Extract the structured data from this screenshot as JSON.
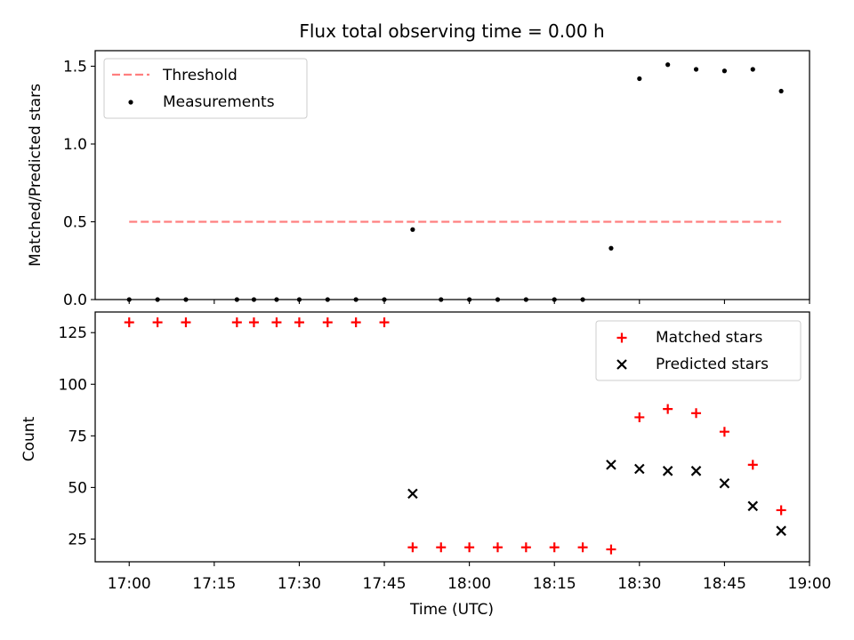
{
  "chart_data": [
    {
      "type": "scatter",
      "title": "Flux total observing time = 0.00 h",
      "xlabel": "",
      "ylabel": "Matched/Predicted stars",
      "ylim": [
        0,
        1.6
      ],
      "yticks": [
        "0.0",
        "0.5",
        "1.0",
        "1.5"
      ],
      "yticks_values": [
        0,
        0.5,
        1.0,
        1.5
      ],
      "legend_position": "top-left",
      "threshold": {
        "name": "Threshold",
        "value": 0.5,
        "x_start": "17:00",
        "x_end": "18:55",
        "color": "#ff7f7f",
        "style": "dashed"
      },
      "series": [
        {
          "name": "Measurements",
          "color": "#000000",
          "marker": "dot",
          "x": [
            "17:00",
            "17:05",
            "17:10",
            "17:19",
            "17:22",
            "17:26",
            "17:30",
            "17:35",
            "17:40",
            "17:45",
            "17:50",
            "17:55",
            "18:00",
            "18:05",
            "18:10",
            "18:15",
            "18:20",
            "18:25",
            "18:30",
            "18:35",
            "18:40",
            "18:45",
            "18:50",
            "18:55"
          ],
          "y": [
            0,
            0,
            0,
            0,
            0,
            0,
            0,
            0,
            0,
            0,
            0.45,
            0,
            0,
            0,
            0,
            0,
            0,
            0.33,
            1.42,
            1.51,
            1.48,
            1.47,
            1.48,
            1.34
          ]
        }
      ]
    },
    {
      "type": "scatter",
      "title": "",
      "xlabel": "Time (UTC)",
      "ylabel": "Count",
      "xlim": [
        "16:54",
        "19:00"
      ],
      "xticks": [
        "17:00",
        "17:15",
        "17:30",
        "17:45",
        "18:00",
        "18:15",
        "18:30",
        "18:45",
        "19:00"
      ],
      "ylim": [
        14,
        135
      ],
      "yticks": [
        "25",
        "50",
        "75",
        "100",
        "125"
      ],
      "yticks_values": [
        25,
        50,
        75,
        100,
        125
      ],
      "legend_position": "top-right",
      "series": [
        {
          "name": "Matched stars",
          "color": "#ff0000",
          "marker": "plus",
          "x": [
            "17:00",
            "17:05",
            "17:10",
            "17:19",
            "17:22",
            "17:26",
            "17:30",
            "17:35",
            "17:40",
            "17:45",
            "17:50",
            "17:55",
            "18:00",
            "18:05",
            "18:10",
            "18:15",
            "18:20",
            "18:25",
            "18:30",
            "18:35",
            "18:40",
            "18:45",
            "18:50",
            "18:55"
          ],
          "y": [
            130,
            130,
            130,
            130,
            130,
            130,
            130,
            130,
            130,
            130,
            21,
            21,
            21,
            21,
            21,
            21,
            21,
            20,
            84,
            88,
            86,
            77,
            61,
            39
          ]
        },
        {
          "name": "Predicted stars",
          "color": "#000000",
          "marker": "x",
          "x": [
            "17:50",
            "18:25",
            "18:30",
            "18:35",
            "18:40",
            "18:45",
            "18:50",
            "18:55"
          ],
          "y": [
            47,
            61,
            59,
            58,
            58,
            52,
            41,
            29
          ]
        }
      ]
    }
  ]
}
